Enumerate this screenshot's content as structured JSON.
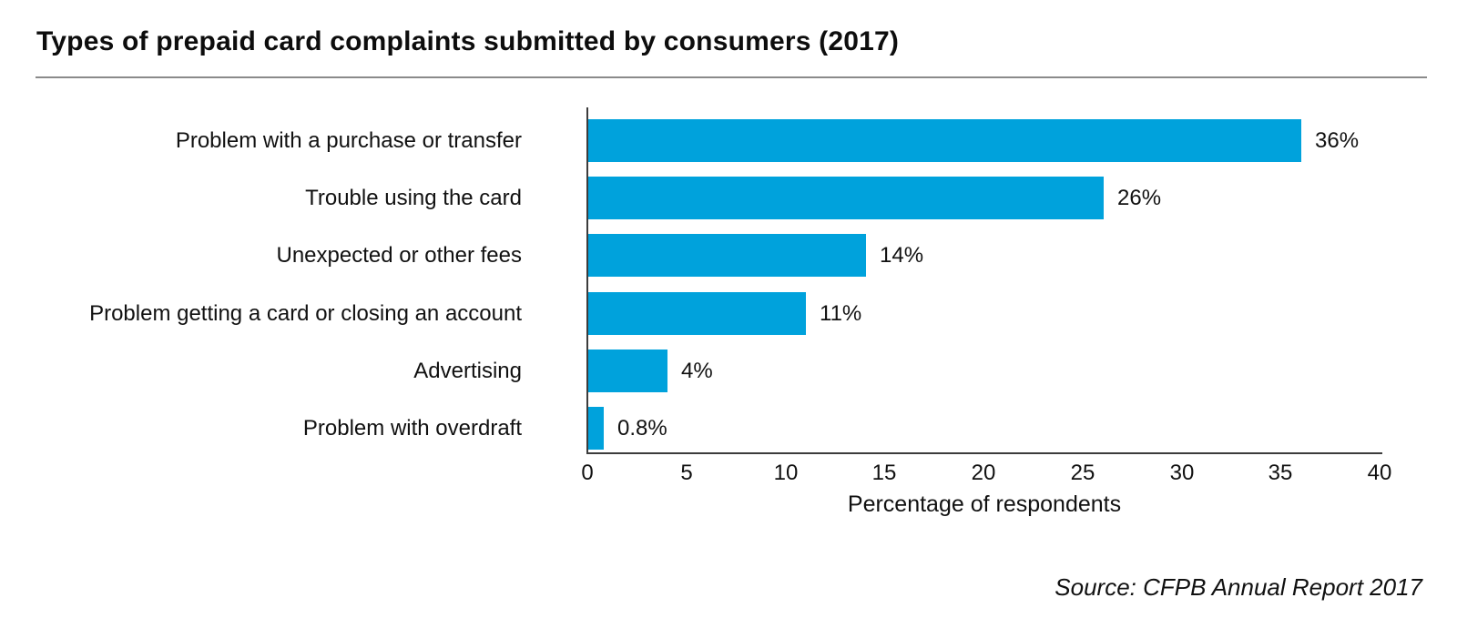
{
  "header": {
    "title": "Types of prepaid card complaints submitted by consumers (2017)"
  },
  "chart_data": {
    "type": "bar",
    "orientation": "horizontal",
    "title": "Types of prepaid card complaints submitted by consumers (2017)",
    "categories": [
      "Problem with a purchase or transfer",
      "Trouble using the card",
      "Unexpected or other fees",
      "Problem getting a card or closing an account",
      "Advertising",
      "Problem with overdraft"
    ],
    "values": [
      36,
      26,
      14,
      11,
      4,
      0.8
    ],
    "value_labels": [
      "36%",
      "26%",
      "14%",
      "11%",
      "4%",
      "0.8%"
    ],
    "xlabel": "Percentage of respondents",
    "ylabel": "",
    "xlim": [
      0,
      40
    ],
    "x_ticks": [
      0,
      5,
      10,
      15,
      20,
      25,
      30,
      35,
      40
    ],
    "grid": false,
    "legend": false,
    "value_label_position": "right-of-bar",
    "bar_color": "#00a2dc"
  },
  "colors": {
    "bar": "#00a2dc",
    "axis": "#3c3c3c",
    "title_rule": "#8a8a8a",
    "text": "#111111"
  },
  "footer": {
    "source": "Source: CFPB Annual Report 2017"
  }
}
